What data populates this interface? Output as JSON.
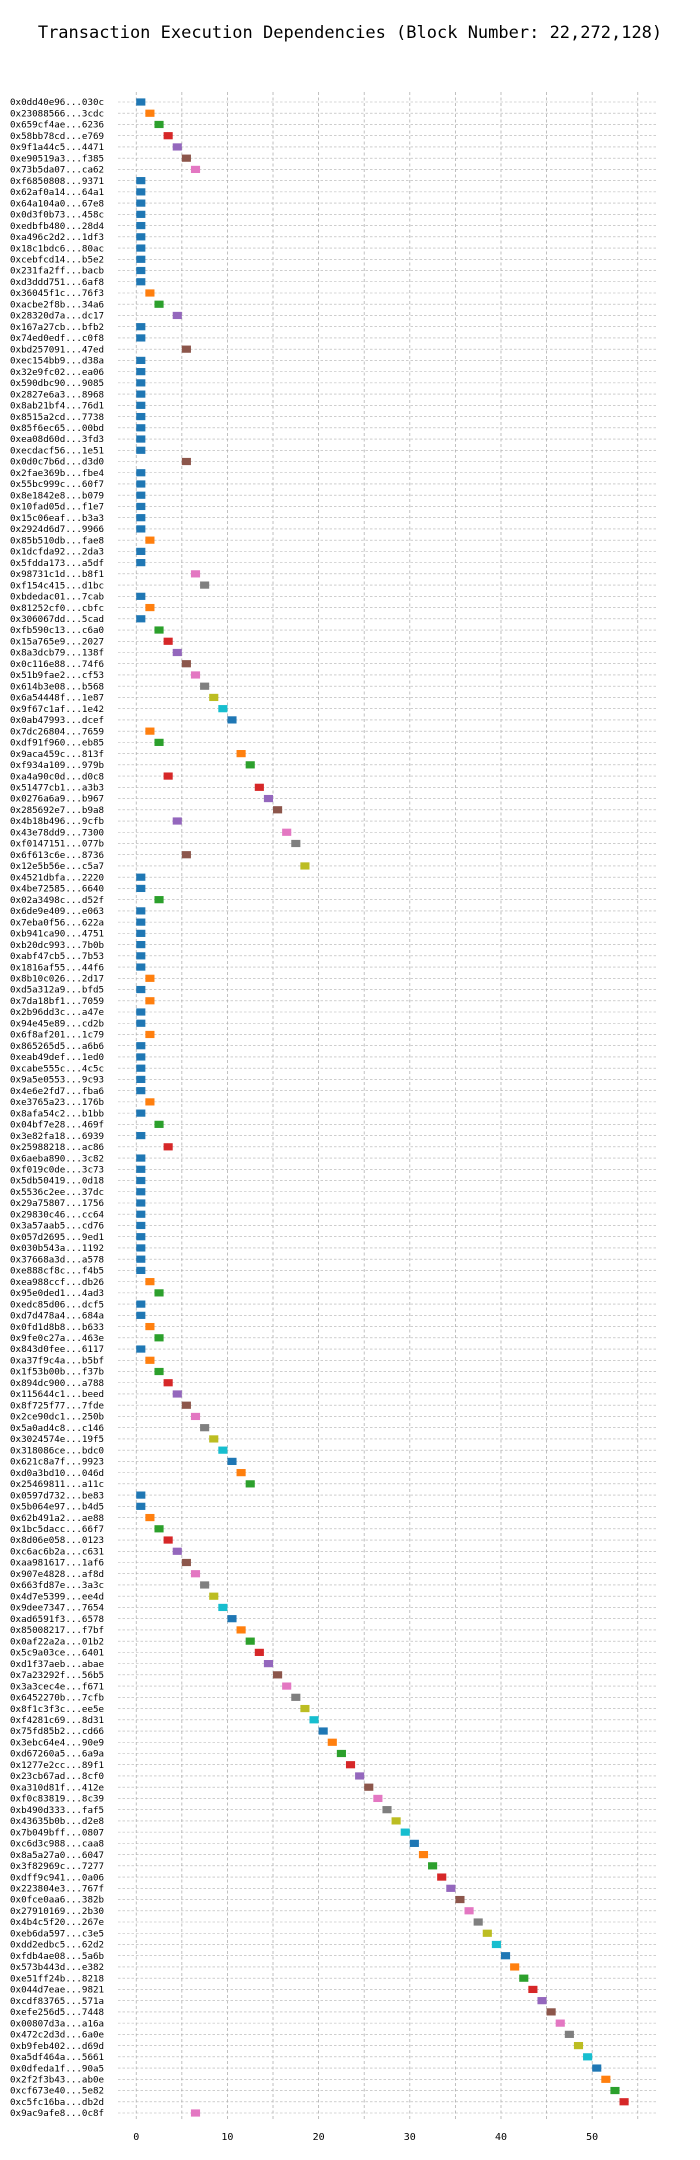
{
  "chart_data": {
    "type": "bar",
    "orientation": "horizontal",
    "title": "Transaction Execution Dependencies (Block Number: 22,272,128)",
    "xlabel": "",
    "ylabel": "",
    "xlim": [
      -2,
      57
    ],
    "xticks": [
      0,
      10,
      20,
      30,
      40,
      50
    ],
    "grid": true,
    "bar_length": 1,
    "palette": [
      "#1f77b4",
      "#ff7f0e",
      "#2ca02c",
      "#d62728",
      "#9467bd",
      "#8c564b",
      "#e377c2",
      "#7f7f7f",
      "#bcbd22",
      "#17becf"
    ],
    "transactions": [
      {
        "label": "0x0dd40e96...030c",
        "start": 0
      },
      {
        "label": "0x23088566...3cdc",
        "start": 1
      },
      {
        "label": "0x659cf4ae...6236",
        "start": 2
      },
      {
        "label": "0x58bb78cd...e769",
        "start": 3
      },
      {
        "label": "0x9f1a44c5...4471",
        "start": 4
      },
      {
        "label": "0xe90519a3...f385",
        "start": 5
      },
      {
        "label": "0x73b5da07...ca62",
        "start": 6
      },
      {
        "label": "0xf6850808...9371",
        "start": 0
      },
      {
        "label": "0x62af0a14...64a1",
        "start": 0
      },
      {
        "label": "0x64a104a0...67e8",
        "start": 0
      },
      {
        "label": "0x0d3f0b73...458c",
        "start": 0
      },
      {
        "label": "0xedbfb480...28d4",
        "start": 0
      },
      {
        "label": "0xa496c2d2...1df3",
        "start": 0
      },
      {
        "label": "0x18c1bdc6...80ac",
        "start": 0
      },
      {
        "label": "0xcebfcd14...b5e2",
        "start": 0
      },
      {
        "label": "0x231fa2ff...bacb",
        "start": 0
      },
      {
        "label": "0xd3ddd751...6af8",
        "start": 0
      },
      {
        "label": "0x36045f1c...76f3",
        "start": 1
      },
      {
        "label": "0xacbe2f8b...34a6",
        "start": 2
      },
      {
        "label": "0x28320d7a...dc17",
        "start": 4
      },
      {
        "label": "0x167a27cb...bfb2",
        "start": 0
      },
      {
        "label": "0x74ed0edf...c0f8",
        "start": 0
      },
      {
        "label": "0xbd257091...47ed",
        "start": 5
      },
      {
        "label": "0xec154bb9...d38a",
        "start": 0
      },
      {
        "label": "0x32e9fc02...ea06",
        "start": 0
      },
      {
        "label": "0x590dbc90...9085",
        "start": 0
      },
      {
        "label": "0x2827e6a3...8968",
        "start": 0
      },
      {
        "label": "0x8ab21bf4...76d1",
        "start": 0
      },
      {
        "label": "0x8515a2cd...7738",
        "start": 0
      },
      {
        "label": "0x85f6ec65...00bd",
        "start": 0
      },
      {
        "label": "0xea08d60d...3fd3",
        "start": 0
      },
      {
        "label": "0xecdacf56...1e51",
        "start": 0
      },
      {
        "label": "0x0d0c7b6d...d3d0",
        "start": 5
      },
      {
        "label": "0x2fae369b...fbe4",
        "start": 0
      },
      {
        "label": "0x55bc999c...60f7",
        "start": 0
      },
      {
        "label": "0x8e1842e8...b079",
        "start": 0
      },
      {
        "label": "0x10fad05d...f1e7",
        "start": 0
      },
      {
        "label": "0x15c06eaf...b3a3",
        "start": 0
      },
      {
        "label": "0x2924d6d7...9966",
        "start": 0
      },
      {
        "label": "0x85b510db...fae8",
        "start": 1
      },
      {
        "label": "0x1dcfda92...2da3",
        "start": 0
      },
      {
        "label": "0x5fdda173...a5df",
        "start": 0
      },
      {
        "label": "0x98731c1d...b8f1",
        "start": 6
      },
      {
        "label": "0xf154c415...d1bc",
        "start": 7
      },
      {
        "label": "0xbdedac01...7cab",
        "start": 0
      },
      {
        "label": "0x81252cf0...cbfc",
        "start": 1
      },
      {
        "label": "0x306067dd...5cad",
        "start": 0
      },
      {
        "label": "0xfb590c13...c6a0",
        "start": 2
      },
      {
        "label": "0x15a765e9...2027",
        "start": 3
      },
      {
        "label": "0x8a3dcb79...138f",
        "start": 4
      },
      {
        "label": "0x0c116e88...74f6",
        "start": 5
      },
      {
        "label": "0x51b9fae2...cf53",
        "start": 6
      },
      {
        "label": "0x614b3e08...b568",
        "start": 7
      },
      {
        "label": "0x6a54448f...1e87",
        "start": 8
      },
      {
        "label": "0x9f67c1af...1e42",
        "start": 9
      },
      {
        "label": "0x0ab47993...dcef",
        "start": 10
      },
      {
        "label": "0x7dc26804...7659",
        "start": 1
      },
      {
        "label": "0xdf91f960...eb85",
        "start": 2
      },
      {
        "label": "0x9aca459c...813f",
        "start": 11
      },
      {
        "label": "0xf934a109...979b",
        "start": 12
      },
      {
        "label": "0xa4a90c0d...d0c8",
        "start": 3
      },
      {
        "label": "0x51477cb1...a3b3",
        "start": 13
      },
      {
        "label": "0x0276a6a9...b967",
        "start": 14
      },
      {
        "label": "0x285692e7...b9a8",
        "start": 15
      },
      {
        "label": "0x4b18b496...9cfb",
        "start": 4
      },
      {
        "label": "0x43e78dd9...7300",
        "start": 16
      },
      {
        "label": "0xf0147151...077b",
        "start": 17
      },
      {
        "label": "0x6f613c6e...8736",
        "start": 5
      },
      {
        "label": "0x12e5b56e...c5a7",
        "start": 18
      },
      {
        "label": "0x4521dbfa...2220",
        "start": 0
      },
      {
        "label": "0x4be72585...6640",
        "start": 0
      },
      {
        "label": "0x02a3498c...d52f",
        "start": 2
      },
      {
        "label": "0x6de9e409...e063",
        "start": 0
      },
      {
        "label": "0x7eba0f56...622a",
        "start": 0
      },
      {
        "label": "0xb941ca90...4751",
        "start": 0
      },
      {
        "label": "0xb20dc993...7b0b",
        "start": 0
      },
      {
        "label": "0xabf47cb5...7b53",
        "start": 0
      },
      {
        "label": "0x1816af55...44f6",
        "start": 0
      },
      {
        "label": "0x8b10c026...2d17",
        "start": 1
      },
      {
        "label": "0xd5a312a9...bfd5",
        "start": 0
      },
      {
        "label": "0x7da18bf1...7059",
        "start": 1
      },
      {
        "label": "0x2b96dd3c...a47e",
        "start": 0
      },
      {
        "label": "0x94e45e89...cd2b",
        "start": 0
      },
      {
        "label": "0x6f8af201...1c79",
        "start": 1
      },
      {
        "label": "0x865265d5...a6b6",
        "start": 0
      },
      {
        "label": "0xeab49def...1ed0",
        "start": 0
      },
      {
        "label": "0xcabe555c...4c5c",
        "start": 0
      },
      {
        "label": "0x9a5e0553...9c93",
        "start": 0
      },
      {
        "label": "0x4e6e2fd7...fba6",
        "start": 0
      },
      {
        "label": "0xe3765a23...176b",
        "start": 1
      },
      {
        "label": "0x8afa54c2...b1bb",
        "start": 0
      },
      {
        "label": "0x04bf7e28...469f",
        "start": 2
      },
      {
        "label": "0x3e82fa18...6939",
        "start": 0
      },
      {
        "label": "0x25988218...ac86",
        "start": 3
      },
      {
        "label": "0x6aeba890...3c82",
        "start": 0
      },
      {
        "label": "0xf019c0de...3c73",
        "start": 0
      },
      {
        "label": "0x5db50419...0d18",
        "start": 0
      },
      {
        "label": "0x5536c2ee...37dc",
        "start": 0
      },
      {
        "label": "0x29a75807...1756",
        "start": 0
      },
      {
        "label": "0x29830c46...cc64",
        "start": 0
      },
      {
        "label": "0x3a57aab5...cd76",
        "start": 0
      },
      {
        "label": "0x057d2695...9ed1",
        "start": 0
      },
      {
        "label": "0x030b543a...1192",
        "start": 0
      },
      {
        "label": "0x37668a3d...a578",
        "start": 0
      },
      {
        "label": "0xe888cf8c...f4b5",
        "start": 0
      },
      {
        "label": "0xea988ccf...db26",
        "start": 1
      },
      {
        "label": "0x95e0ded1...4ad3",
        "start": 2
      },
      {
        "label": "0xedc85d06...dcf5",
        "start": 0
      },
      {
        "label": "0xd7d478a4...684a",
        "start": 0
      },
      {
        "label": "0x0fd1d8b8...b633",
        "start": 1
      },
      {
        "label": "0x9fe0c27a...463e",
        "start": 2
      },
      {
        "label": "0x843d0fee...6117",
        "start": 0
      },
      {
        "label": "0xa37f9c4a...b5bf",
        "start": 1
      },
      {
        "label": "0x1f53b00b...f37b",
        "start": 2
      },
      {
        "label": "0x894dc900...a788",
        "start": 3
      },
      {
        "label": "0x115644c1...beed",
        "start": 4
      },
      {
        "label": "0x8f725f77...7fde",
        "start": 5
      },
      {
        "label": "0x2ce90dc1...250b",
        "start": 6
      },
      {
        "label": "0x5a0ad4c8...c146",
        "start": 7
      },
      {
        "label": "0x3024574e...19f5",
        "start": 8
      },
      {
        "label": "0x318086ce...bdc0",
        "start": 9
      },
      {
        "label": "0x621c8a7f...9923",
        "start": 10
      },
      {
        "label": "0xd0a3bd10...046d",
        "start": 11
      },
      {
        "label": "0x25469811...a11c",
        "start": 12
      },
      {
        "label": "0x0597d732...be83",
        "start": 0
      },
      {
        "label": "0x5b064e97...b4d5",
        "start": 0
      },
      {
        "label": "0x62b491a2...ae88",
        "start": 1
      },
      {
        "label": "0x1bc5dacc...66f7",
        "start": 2
      },
      {
        "label": "0x8d06e058...0123",
        "start": 3
      },
      {
        "label": "0xc6ac6b2a...c631",
        "start": 4
      },
      {
        "label": "0xaa981617...1af6",
        "start": 5
      },
      {
        "label": "0x907e4828...af8d",
        "start": 6
      },
      {
        "label": "0x663fd87e...3a3c",
        "start": 7
      },
      {
        "label": "0x4d7e5399...ee4d",
        "start": 8
      },
      {
        "label": "0x9dee7347...7654",
        "start": 9
      },
      {
        "label": "0xad6591f3...6578",
        "start": 10
      },
      {
        "label": "0x85008217...f7bf",
        "start": 11
      },
      {
        "label": "0x0af22a2a...01b2",
        "start": 12
      },
      {
        "label": "0x5c9a03ce...6401",
        "start": 13
      },
      {
        "label": "0xd1f37aeb...abae",
        "start": 14
      },
      {
        "label": "0x7a23292f...56b5",
        "start": 15
      },
      {
        "label": "0x3a3cec4e...f671",
        "start": 16
      },
      {
        "label": "0x6452270b...7cfb",
        "start": 17
      },
      {
        "label": "0x8f1c3f3c...ee5e",
        "start": 18
      },
      {
        "label": "0xf4281c69...8d31",
        "start": 19
      },
      {
        "label": "0x75fd85b2...cd66",
        "start": 20
      },
      {
        "label": "0x3ebc64e4...90e9",
        "start": 21
      },
      {
        "label": "0xd67260a5...6a9a",
        "start": 22
      },
      {
        "label": "0x1277e2cc...89f1",
        "start": 23
      },
      {
        "label": "0x23cb67ad...8cf0",
        "start": 24
      },
      {
        "label": "0xa310d81f...412e",
        "start": 25
      },
      {
        "label": "0xf0c83819...8c39",
        "start": 26
      },
      {
        "label": "0xb490d333...faf5",
        "start": 27
      },
      {
        "label": "0x43635b0b...d2e8",
        "start": 28
      },
      {
        "label": "0x7b049bff...0807",
        "start": 29
      },
      {
        "label": "0xc6d3c988...caa8",
        "start": 30
      },
      {
        "label": "0x8a5a27a0...6047",
        "start": 31
      },
      {
        "label": "0x3f82969c...7277",
        "start": 32
      },
      {
        "label": "0xdff9c941...0a06",
        "start": 33
      },
      {
        "label": "0x223804e3...767f",
        "start": 34
      },
      {
        "label": "0x0fce0aa6...382b",
        "start": 35
      },
      {
        "label": "0x27910169...2b30",
        "start": 36
      },
      {
        "label": "0x4b4c5f20...267e",
        "start": 37
      },
      {
        "label": "0xeb6da597...c3e5",
        "start": 38
      },
      {
        "label": "0xdd2edbc5...62d2",
        "start": 39
      },
      {
        "label": "0xfdb4ae08...5a6b",
        "start": 40
      },
      {
        "label": "0x573b443d...e382",
        "start": 41
      },
      {
        "label": "0xe51ff24b...8218",
        "start": 42
      },
      {
        "label": "0x044d7eae...9821",
        "start": 43
      },
      {
        "label": "0xcdf83765...571a",
        "start": 44
      },
      {
        "label": "0xefe256d5...7448",
        "start": 45
      },
      {
        "label": "0x00807d3a...a16a",
        "start": 46
      },
      {
        "label": "0x472c2d3d...6a0e",
        "start": 47
      },
      {
        "label": "0xb9feb402...d69d",
        "start": 48
      },
      {
        "label": "0xa5df464a...5661",
        "start": 49
      },
      {
        "label": "0x0dfeda1f...90a5",
        "start": 50
      },
      {
        "label": "0x2f2f3b43...ab0e",
        "start": 51
      },
      {
        "label": "0xcf673e40...5e82",
        "start": 52
      },
      {
        "label": "0xc5fc16ba...db2d",
        "start": 53
      },
      {
        "label": "0x9ac9afe8...0c8f",
        "start": 6
      }
    ]
  }
}
